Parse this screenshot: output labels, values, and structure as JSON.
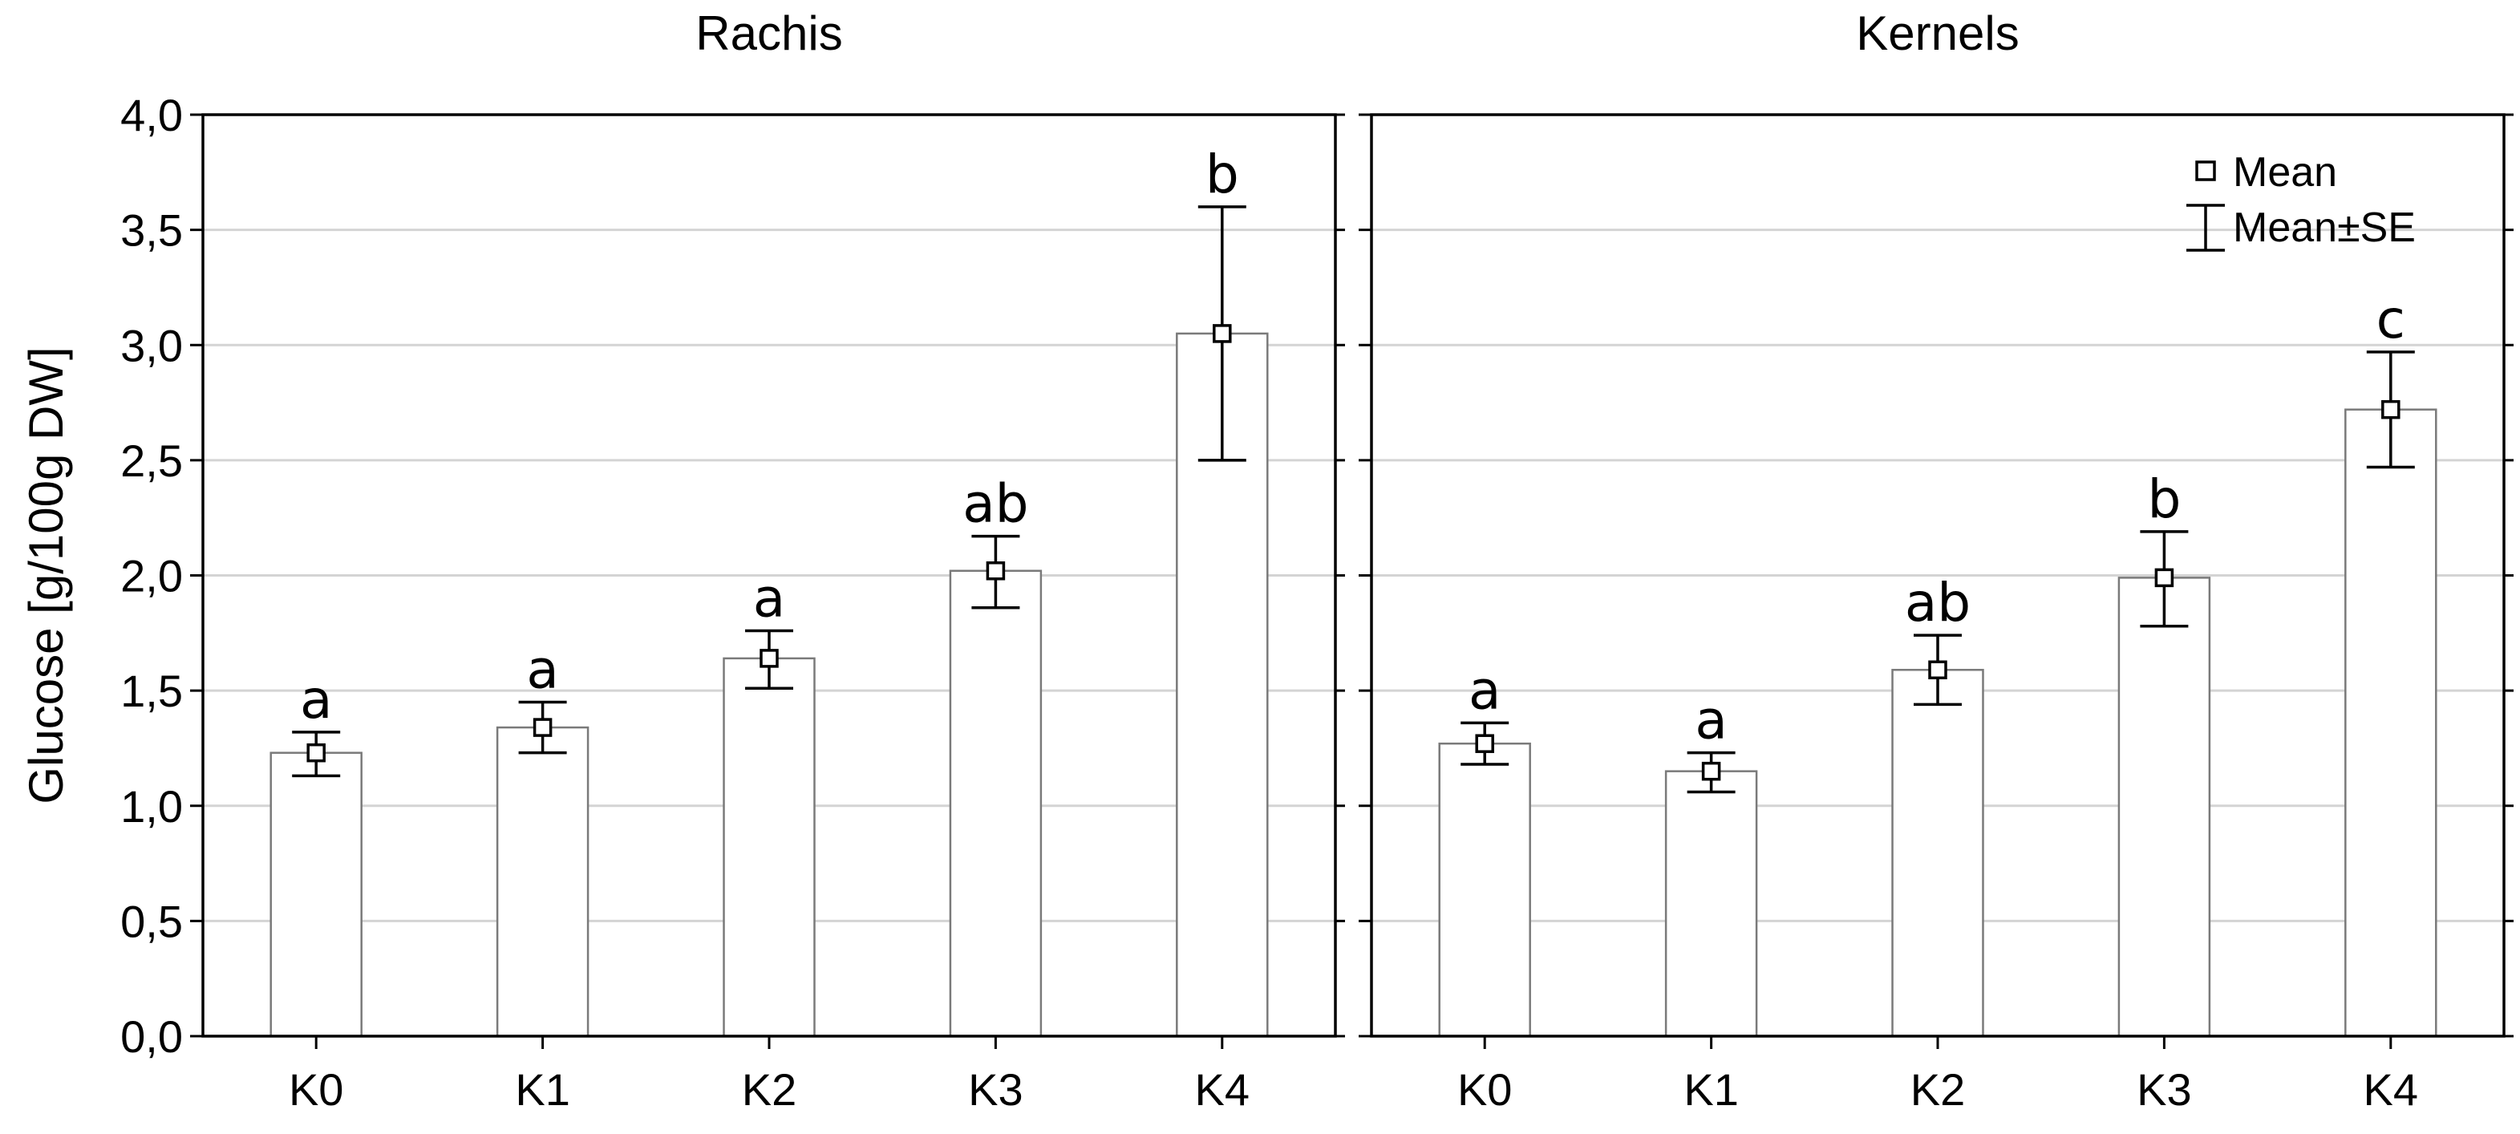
{
  "chart_data": {
    "type": "bar",
    "ylabel": "Glucose [g/100g DW]",
    "ylim": [
      0,
      4.0
    ],
    "yticks": [
      "0,0",
      "0,5",
      "1,0",
      "1,5",
      "2,0",
      "2,5",
      "3,0",
      "3,5",
      "4,0"
    ],
    "grid": true,
    "legend": {
      "position": "top-right",
      "entries": [
        "Mean",
        "Mean±SE"
      ]
    },
    "panels": [
      {
        "title": "Rachis",
        "categories": [
          "K0",
          "K1",
          "K2",
          "K3",
          "K4"
        ],
        "values": [
          1.23,
          1.34,
          1.64,
          2.02,
          3.05
        ],
        "se_low": [
          1.13,
          1.23,
          1.51,
          1.86,
          2.5
        ],
        "se_high": [
          1.32,
          1.45,
          1.76,
          2.17,
          3.6
        ],
        "letters": [
          "a",
          "a",
          "a",
          "ab",
          "b"
        ]
      },
      {
        "title": "Kernels",
        "categories": [
          "K0",
          "K1",
          "K2",
          "K3",
          "K4"
        ],
        "values": [
          1.27,
          1.15,
          1.59,
          1.99,
          2.72
        ],
        "se_low": [
          1.18,
          1.06,
          1.44,
          1.78,
          2.47
        ],
        "se_high": [
          1.36,
          1.23,
          1.74,
          2.19,
          2.97
        ],
        "letters": [
          "a",
          "a",
          "ab",
          "b",
          "c"
        ]
      }
    ]
  }
}
